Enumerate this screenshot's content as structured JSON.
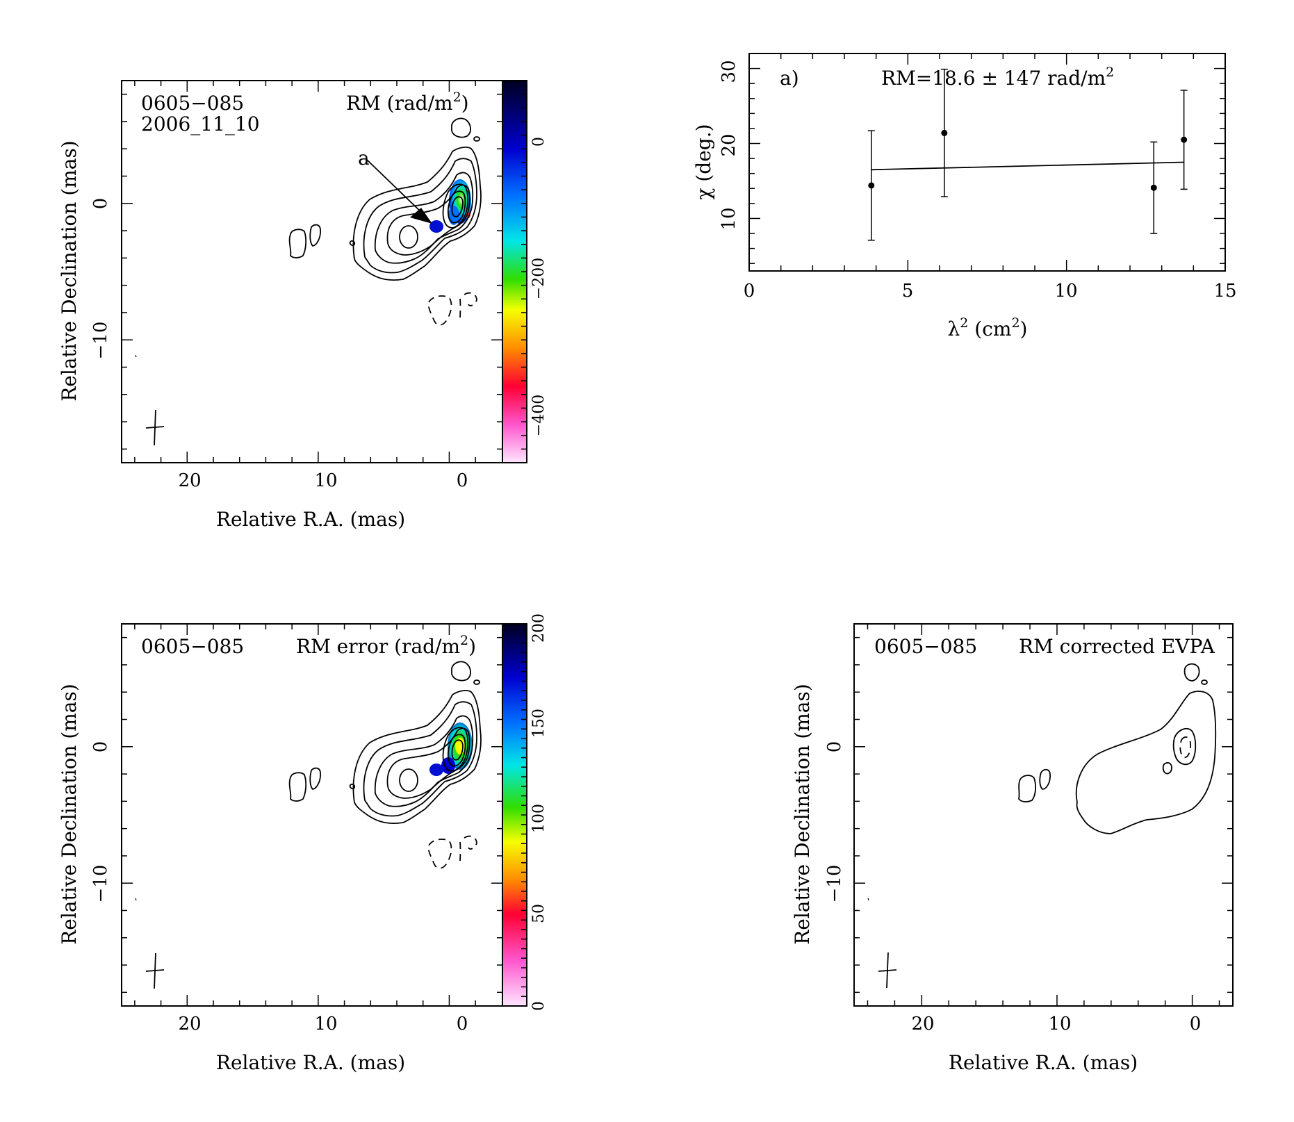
{
  "panels": {
    "rm_map": {
      "source": "0605−085",
      "date": "2006_11_10",
      "colorbar_label": "RM (rad/m",
      "colorbar_label_sup": "2",
      "colorbar_label_close": ")",
      "colorbar_ticks": [
        "0",
        "−200",
        "−400"
      ],
      "x_ticks": [
        "20",
        "10",
        "0"
      ],
      "y_ticks": [
        "0",
        "−10"
      ],
      "xlabel": "Relative R.A. (mas)",
      "ylabel": "Relative Declination (mas)",
      "annotation": "a"
    },
    "rm_fit": {
      "panel_tag": "a)",
      "fit_text": "RM=18.6 ± 147 rad/m",
      "fit_text_sup": "2",
      "x_ticks": [
        "0",
        "5",
        "10",
        "15"
      ],
      "y_ticks": [
        "10",
        "20",
        "30"
      ],
      "xlabel_main": "λ",
      "xlabel_sup": "2",
      "xlabel_rest": " (cm",
      "xlabel_sup2": "2",
      "xlabel_close": ")",
      "ylabel": "χ (deg.)"
    },
    "rm_error_map": {
      "source": "0605−085",
      "colorbar_label": "RM error (rad/m",
      "colorbar_label_sup": "2",
      "colorbar_label_close": ")",
      "colorbar_ticks": [
        "200",
        "150",
        "100",
        "50",
        "0"
      ],
      "x_ticks": [
        "20",
        "10",
        "0"
      ],
      "y_ticks": [
        "0",
        "−10"
      ],
      "xlabel": "Relative R.A. (mas)",
      "ylabel": "Relative Declination (mas)"
    },
    "evpa_map": {
      "source": "0605−085",
      "title": "RM corrected EVPA",
      "x_ticks": [
        "20",
        "10",
        "0"
      ],
      "y_ticks": [
        "0",
        "−10"
      ],
      "xlabel": "Relative R.A. (mas)",
      "ylabel": "Relative Declination (mas)"
    }
  },
  "chart_data": [
    {
      "type": "heatmap",
      "panel": "rm_map",
      "xlabel": "Relative R.A. (mas)",
      "ylabel": "Relative Declination (mas)",
      "xlim": [
        25,
        -3
      ],
      "ylim": [
        -19,
        9
      ],
      "colorbar": {
        "label": "RM (rad/m2)",
        "range": [
          -480,
          80
        ],
        "ticks": [
          0,
          -200,
          -400
        ]
      }
    },
    {
      "type": "scatter",
      "panel": "rm_fit",
      "xlabel": "λ2 (cm2)",
      "ylabel": "χ (deg.)",
      "xlim": [
        0,
        15
      ],
      "ylim": [
        3,
        32
      ],
      "points": [
        {
          "x": 3.85,
          "y": 14.4,
          "err": 7.3
        },
        {
          "x": 6.15,
          "y": 21.4,
          "err": 8.5
        },
        {
          "x": 12.75,
          "y": 14.1,
          "err": 6.1
        },
        {
          "x": 13.7,
          "y": 20.5,
          "err": 6.6
        }
      ],
      "fit_line": {
        "x": [
          3.85,
          13.7
        ],
        "y": [
          16.5,
          17.5
        ]
      },
      "annotation": "RM=18.6 ± 147 rad/m2"
    },
    {
      "type": "heatmap",
      "panel": "rm_error_map",
      "xlabel": "Relative R.A. (mas)",
      "ylabel": "Relative Declination (mas)",
      "xlim": [
        25,
        -3
      ],
      "ylim": [
        -19,
        9
      ],
      "colorbar": {
        "label": "RM error (rad/m2)",
        "range": [
          0,
          200
        ],
        "ticks": [
          0,
          50,
          100,
          150,
          200
        ]
      }
    },
    {
      "type": "heatmap",
      "panel": "evpa_map",
      "xlabel": "Relative R.A. (mas)",
      "ylabel": "Relative Declination (mas)",
      "xlim": [
        25,
        -3
      ],
      "ylim": [
        -19,
        9
      ]
    }
  ],
  "colors": {
    "axis": "#000000",
    "background": "#ffffff",
    "colormap": [
      "#ffe0ff",
      "#ff40c0",
      "#ff0030",
      "#ff9000",
      "#f0ff00",
      "#40e000",
      "#00e0e0",
      "#0060ff",
      "#0000c0",
      "#000030"
    ]
  }
}
